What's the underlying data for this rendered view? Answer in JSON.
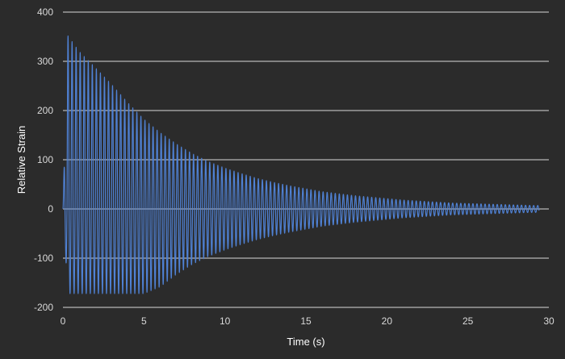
{
  "chart_data": {
    "type": "line",
    "title": "",
    "xlabel": "Time (s)",
    "ylabel": "Relative Strain",
    "xlim": [
      0,
      30
    ],
    "ylim": [
      -200,
      400
    ],
    "x_ticks": [
      0,
      5,
      10,
      15,
      20,
      25,
      30
    ],
    "y_ticks": [
      -200,
      -100,
      0,
      100,
      200,
      300,
      400
    ],
    "grid": "horizontal",
    "legend": "none",
    "colors": {
      "background": "#2b2b2b",
      "line": "#4f81d4",
      "grid": "#d9d9d9",
      "tick_label": "#d9d9d9",
      "axis_title": "#ffffff"
    },
    "series": [
      {
        "style": "damped oscillation",
        "frequency_hz": 4.0,
        "start_time_s": 0.0,
        "end_time_s": 29.4,
        "lower_clip": -172,
        "envelope": {
          "t": [
            0.3,
            1,
            2,
            3,
            4,
            5,
            6,
            7,
            8,
            9,
            10,
            11,
            12,
            13,
            14,
            15,
            16,
            17,
            18,
            19,
            20,
            21,
            22,
            23,
            24,
            25,
            26,
            27,
            28,
            29,
            29.4
          ],
          "upper": [
            352,
            320,
            287,
            253,
            216,
            182,
            155,
            132,
            112,
            96,
            83,
            72,
            62,
            54,
            47,
            41,
            35,
            31,
            27,
            24,
            21,
            18,
            16,
            14,
            12,
            11,
            10,
            9,
            8,
            7,
            7
          ],
          "lower": [
            -172,
            -172,
            -172,
            -172,
            -172,
            -172,
            -158,
            -133,
            -112,
            -96,
            -83,
            -72,
            -62,
            -54,
            -47,
            -41,
            -35,
            -31,
            -27,
            -24,
            -21,
            -18,
            -16,
            -14,
            -12,
            -11,
            -10,
            -9,
            -8,
            -7,
            -7
          ]
        }
      }
    ]
  }
}
